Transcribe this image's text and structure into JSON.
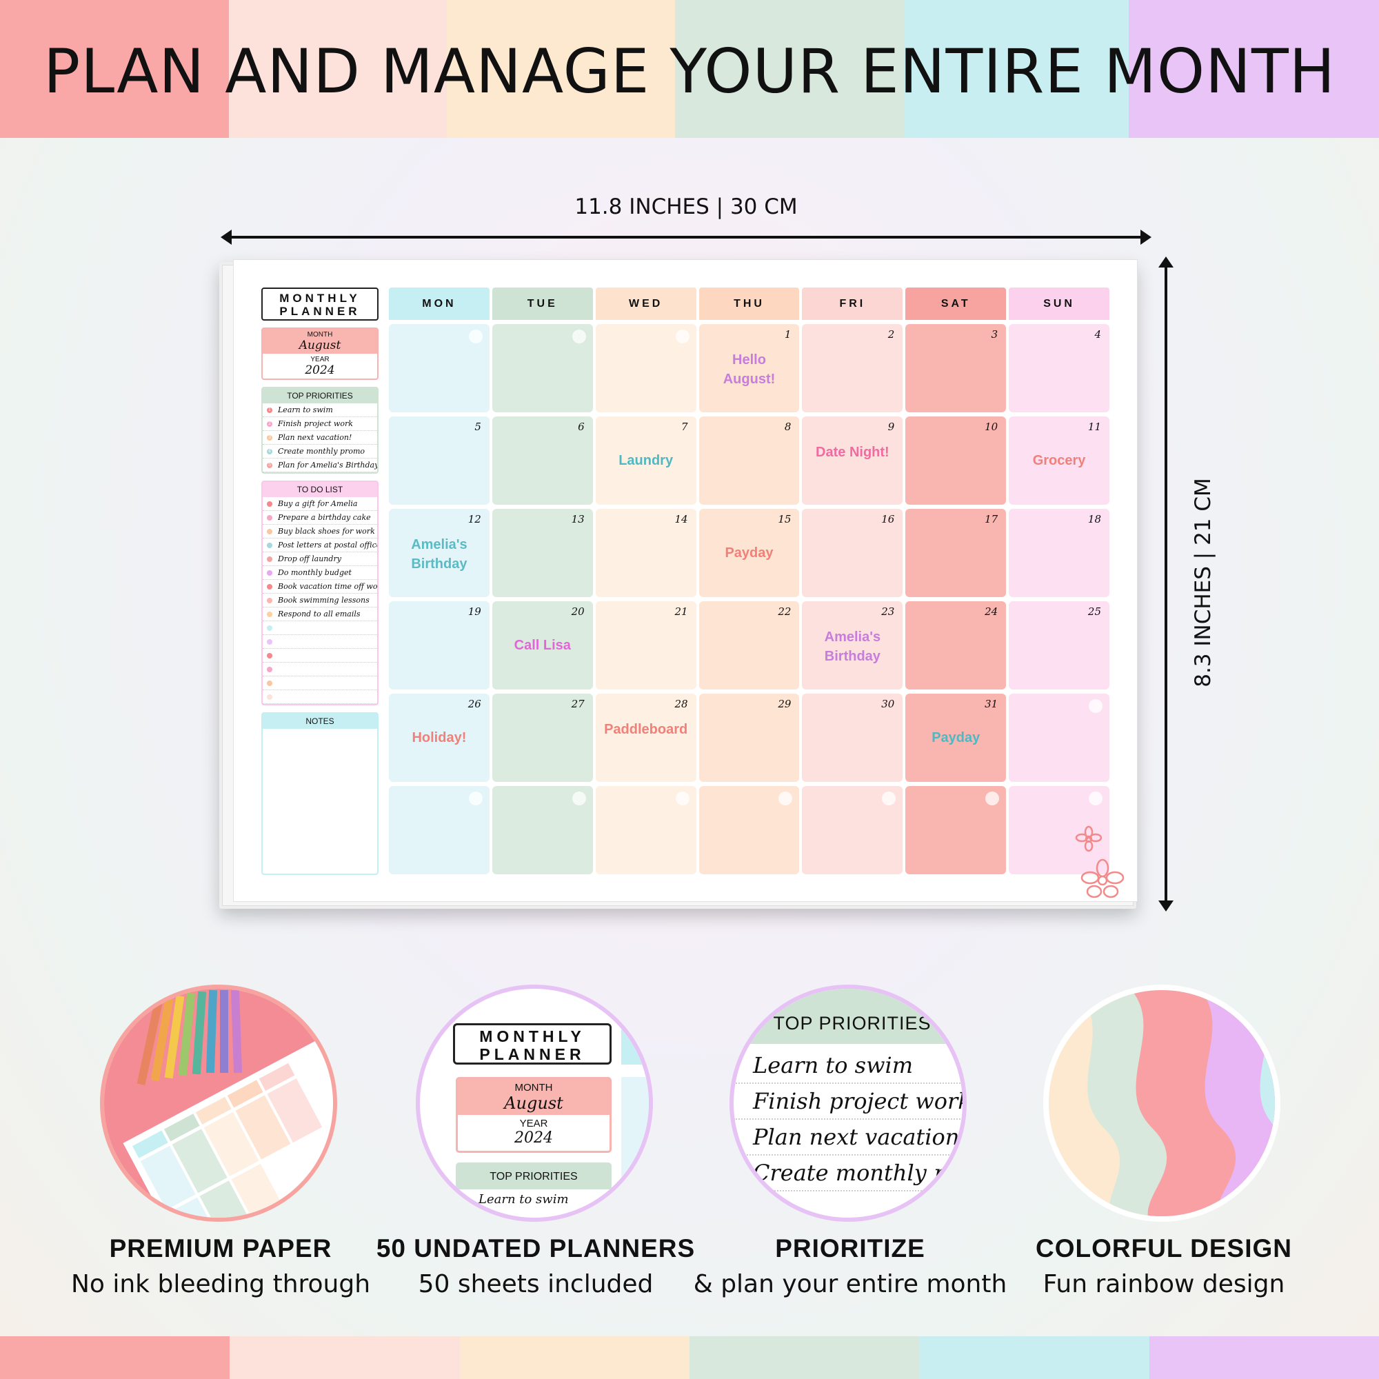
{
  "headline": "PLAN AND MANAGE YOUR ENTIRE MONTH",
  "palette": [
    "#f9a7a7",
    "#fde2dc",
    "#fde8d0",
    "#d8e8dc",
    "#c9eef2",
    "#e8c5f6"
  ],
  "dimensions": {
    "width_label": "11.8 INCHES | 30 CM",
    "height_label": "8.3 INCHES | 21 CM"
  },
  "planner": {
    "title_line1": "MONTHLY",
    "title_line2": "PLANNER",
    "month_label": "MONTH",
    "month_value": "August",
    "year_label": "YEAR",
    "year_value": "2024",
    "priorities_title": "TOP PRIORITIES",
    "priorities": [
      {
        "n": "1",
        "text": "Learn to swim"
      },
      {
        "n": "2",
        "text": "Finish project work"
      },
      {
        "n": "3",
        "text": "Plan next vacation!"
      },
      {
        "n": "4",
        "text": "Create monthly promo"
      },
      {
        "n": "5",
        "text": "Plan for Amelia's Birthday"
      }
    ],
    "todo_title": "TO DO LIST",
    "todos": [
      "Buy a gift for Amelia",
      "Prepare a birthday cake",
      "Buy black shoes for work",
      "Post letters at postal office",
      "Drop off laundry",
      "Do monthly budget",
      "Book vacation time off work",
      "Book swimming lessons",
      "Respond to all emails",
      "",
      "",
      "",
      "",
      "",
      ""
    ],
    "notes_title": "NOTES",
    "days": [
      {
        "label": "MON",
        "color": "#c6eff4",
        "cell": "#e3f5f9"
      },
      {
        "label": "TUE",
        "color": "#cfe3d5",
        "cell": "#dcebe0"
      },
      {
        "label": "WED",
        "color": "#fde3cd",
        "cell": "#fef0e2"
      },
      {
        "label": "THU",
        "color": "#fdd7bf",
        "cell": "#fee4d2"
      },
      {
        "label": "FRI",
        "color": "#fcd6d2",
        "cell": "#fde1de"
      },
      {
        "label": "SAT",
        "color": "#f7a4a0",
        "cell": "#f9b5b0"
      },
      {
        "label": "SUN",
        "color": "#fbd1ee",
        "cell": "#fde1f3"
      }
    ],
    "weeks": [
      [
        "",
        "",
        "",
        "1",
        "2",
        "3",
        "4"
      ],
      [
        "5",
        "6",
        "7",
        "8",
        "9",
        "10",
        "11"
      ],
      [
        "12",
        "13",
        "14",
        "15",
        "16",
        "17",
        "18"
      ],
      [
        "19",
        "20",
        "21",
        "22",
        "23",
        "24",
        "25"
      ],
      [
        "26",
        "27",
        "28",
        "29",
        "30",
        "31",
        ""
      ],
      [
        "",
        "",
        "",
        "",
        "",
        "",
        ""
      ]
    ],
    "events": [
      {
        "week": 0,
        "day": 3,
        "text": "Hello August!",
        "color": "#c77ddb"
      },
      {
        "week": 1,
        "day": 2,
        "text": "Laundry",
        "color": "#4fb8c2"
      },
      {
        "week": 1,
        "day": 4,
        "text": "Date Night!",
        "color": "#f06ba0"
      },
      {
        "week": 1,
        "day": 6,
        "text": "Grocery",
        "color": "#f0817a"
      },
      {
        "week": 2,
        "day": 0,
        "text": "Amelia's Birthday",
        "color": "#5cbac4"
      },
      {
        "week": 2,
        "day": 3,
        "text": "Payday",
        "color": "#f0817a"
      },
      {
        "week": 3,
        "day": 1,
        "text": "Call Lisa",
        "color": "#e266d6"
      },
      {
        "week": 3,
        "day": 4,
        "text": "Amelia's Birthday",
        "color": "#c77ddb"
      },
      {
        "week": 4,
        "day": 0,
        "text": "Holiday!",
        "color": "#f0817a"
      },
      {
        "week": 4,
        "day": 2,
        "text": "Paddleboard",
        "color": "#f0817a"
      },
      {
        "week": 4,
        "day": 5,
        "text": "Payday",
        "color": "#4fb8c2"
      }
    ]
  },
  "features": [
    {
      "title": "PREMIUM PAPER",
      "subtitle": "No ink bleeding through"
    },
    {
      "title": "50 UNDATED PLANNERS",
      "subtitle": "50 sheets included"
    },
    {
      "title": "PRIORITIZE",
      "subtitle": "& plan your entire month"
    },
    {
      "title": "COLORFUL DESIGN",
      "subtitle": "Fun rainbow design"
    }
  ],
  "zoom_preview": {
    "title_line1": "MONTHLY",
    "title_line2": "PLANNER",
    "month_label": "MONTH",
    "month_value": "August",
    "year_label": "YEAR",
    "year_value": "2024",
    "priorities_title": "TOP PRIORITIES",
    "first_item": "Learn to swim"
  },
  "priority_preview": {
    "title": "TOP PRIORITIES",
    "items": [
      "Learn to swim",
      "Finish project work",
      "Plan next vacation!",
      "Create monthly promo"
    ]
  }
}
